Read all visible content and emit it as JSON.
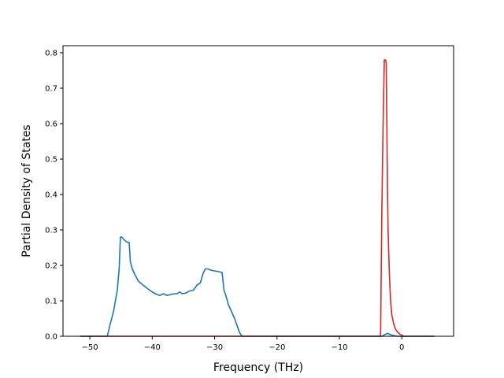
{
  "chart_data": {
    "type": "line",
    "title": "",
    "xlabel": "Frequency (THz)",
    "ylabel": "Partial Density of States",
    "xlim": [
      -54.3,
      8.3
    ],
    "ylim": [
      0.0,
      0.82
    ],
    "xticks": [
      -50,
      -40,
      -30,
      -20,
      -10,
      0
    ],
    "yticks": [
      0.0,
      0.1,
      0.2,
      0.3,
      0.4,
      0.5,
      0.6,
      0.7,
      0.8
    ],
    "xtick_labels": [
      "−50",
      "−40",
      "−30",
      "−20",
      "−10",
      "0"
    ],
    "ytick_labels": [
      "0.0",
      "0.1",
      "0.2",
      "0.3",
      "0.4",
      "0.5",
      "0.6",
      "0.7",
      "0.8"
    ],
    "grid": false,
    "legend": null,
    "series": [
      {
        "color": "#1f77b4",
        "x": [
          -51.5,
          -47.2,
          -46.8,
          -46.2,
          -45.6,
          -45.3,
          -45.1,
          -44.9,
          -44.5,
          -44.0,
          -43.7,
          -43.5,
          -43.2,
          -42.8,
          -42.2,
          -41.5,
          -40.8,
          -40.0,
          -39.5,
          -38.8,
          -38.2,
          -37.6,
          -37.0,
          -36.5,
          -36.0,
          -35.6,
          -35.2,
          -34.6,
          -34.0,
          -33.4,
          -32.8,
          -32.3,
          -31.9,
          -31.5,
          -31.1,
          -30.7,
          -30.2,
          -29.5,
          -28.8,
          -28.5,
          -28.2,
          -27.8,
          -27.3,
          -26.8,
          -26.4,
          -26.0,
          -25.6,
          -3.2,
          -2.8,
          -2.3,
          -2.0,
          -1.7,
          -1.4,
          -1.0,
          -0.6,
          5.2
        ],
        "y": [
          0.0,
          0.0,
          0.03,
          0.07,
          0.13,
          0.19,
          0.28,
          0.28,
          0.272,
          0.265,
          0.265,
          0.21,
          0.19,
          0.175,
          0.155,
          0.145,
          0.135,
          0.125,
          0.12,
          0.115,
          0.12,
          0.115,
          0.118,
          0.12,
          0.12,
          0.125,
          0.12,
          0.122,
          0.128,
          0.13,
          0.145,
          0.15,
          0.175,
          0.19,
          0.19,
          0.187,
          0.185,
          0.183,
          0.18,
          0.13,
          0.115,
          0.09,
          0.07,
          0.05,
          0.03,
          0.01,
          0.0,
          0.0,
          0.004,
          0.008,
          0.006,
          0.004,
          0.002,
          0.001,
          0.0,
          0.0
        ]
      },
      {
        "color": "#d62728",
        "x": [
          -51.5,
          -3.4,
          -3.2,
          -3.0,
          -2.8,
          -2.7,
          -2.6,
          -2.5,
          -2.4,
          -2.3,
          -2.2,
          -2.0,
          -1.8,
          -1.6,
          -1.3,
          -1.0,
          -0.7,
          -0.4,
          -0.1,
          0.3,
          5.2
        ],
        "y": [
          0.0,
          0.0,
          0.35,
          0.6,
          0.78,
          0.78,
          0.78,
          0.77,
          0.6,
          0.42,
          0.3,
          0.18,
          0.1,
          0.06,
          0.035,
          0.02,
          0.012,
          0.007,
          0.004,
          0.0,
          0.0
        ]
      }
    ]
  }
}
